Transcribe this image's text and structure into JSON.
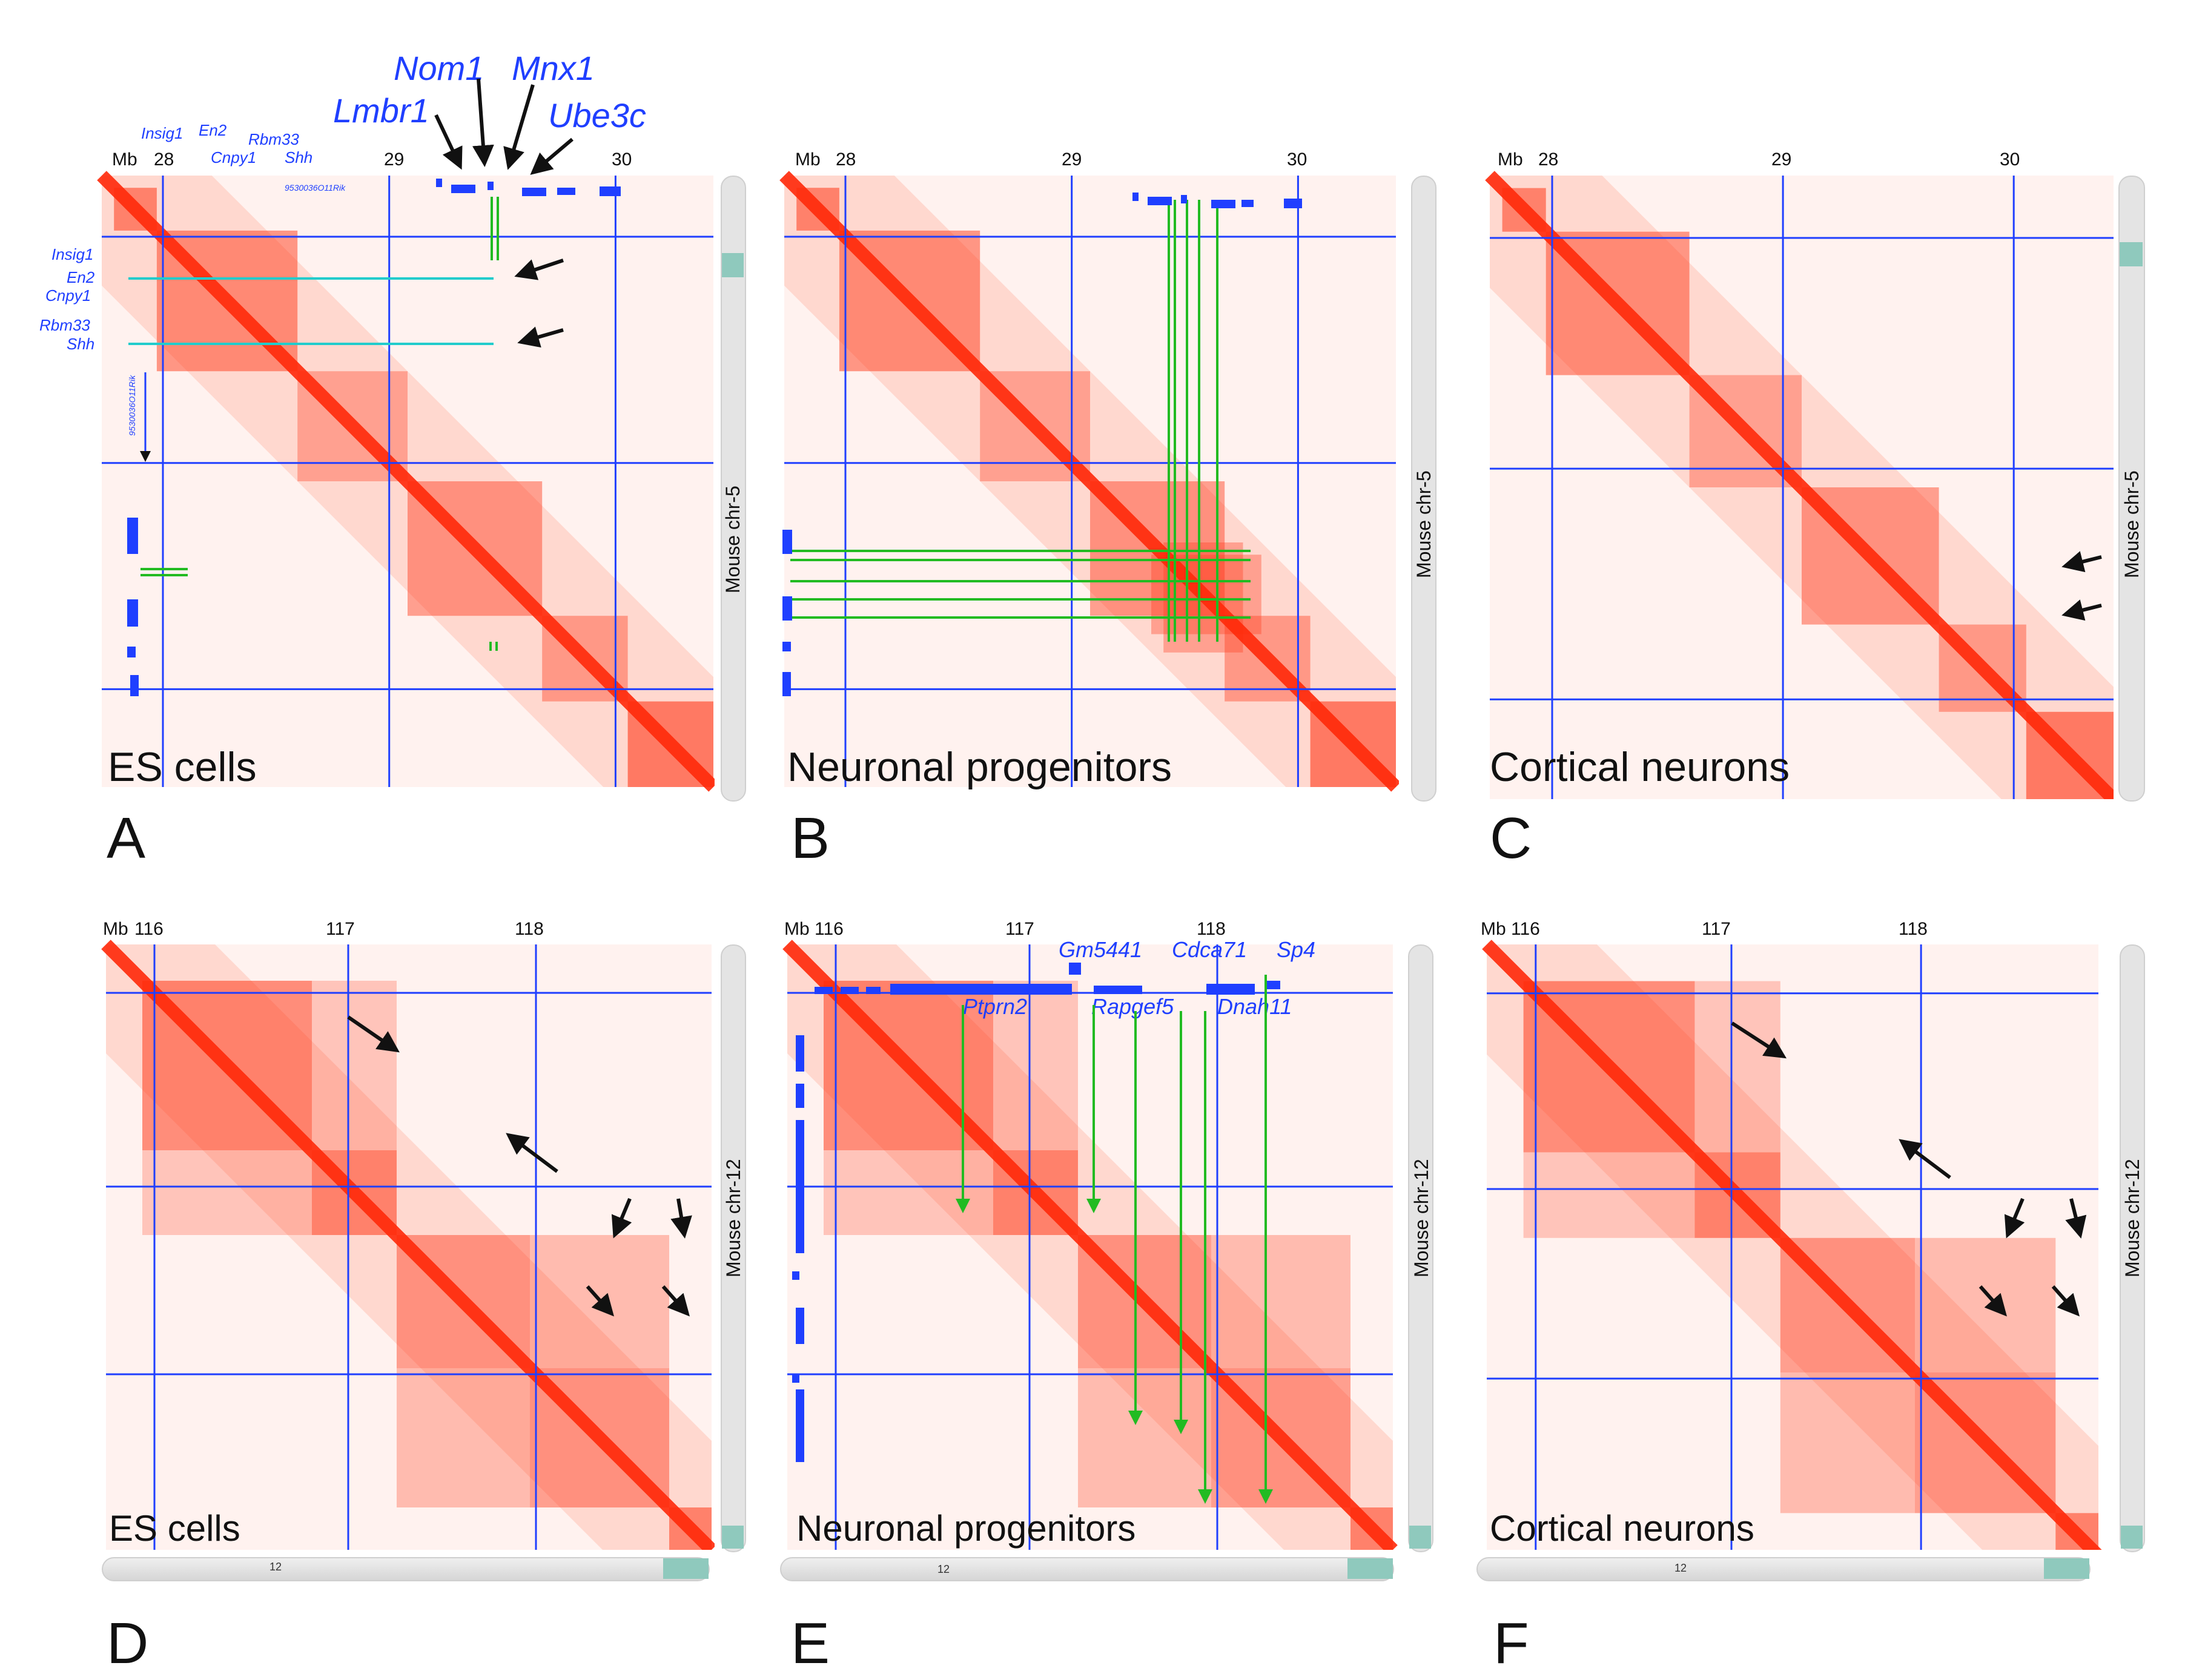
{
  "panels": [
    {
      "id": "A",
      "letter": "A",
      "cell": "ES cells",
      "chrom": "Mouse chr-5",
      "mb": "Mb",
      "ticks": [
        "28",
        "29",
        "30"
      ]
    },
    {
      "id": "B",
      "letter": "B",
      "cell": "Neuronal progenitors",
      "chrom": "Mouse chr-5",
      "mb": "Mb",
      "ticks": [
        "28",
        "29",
        "30"
      ]
    },
    {
      "id": "C",
      "letter": "C",
      "cell": "Cortical neurons",
      "chrom": "Mouse chr-5",
      "mb": "Mb",
      "ticks": [
        "28",
        "29",
        "30"
      ]
    },
    {
      "id": "D",
      "letter": "D",
      "cell": "ES cells",
      "chrom": "Mouse chr-12",
      "mb": "Mb",
      "ticks": [
        "116",
        "117",
        "118"
      ],
      "scrollbar": "12"
    },
    {
      "id": "E",
      "letter": "E",
      "cell": "Neuronal progenitors",
      "chrom": "Mouse chr-12",
      "mb": "Mb",
      "ticks": [
        "116",
        "117",
        "118"
      ],
      "scrollbar": "12"
    },
    {
      "id": "F",
      "letter": "F",
      "cell": "Cortical neurons",
      "chrom": "Mouse chr-12",
      "mb": "Mb",
      "ticks": [
        "116",
        "117",
        "118"
      ],
      "scrollbar": "12"
    }
  ],
  "genes_top": {
    "nom1": "Nom1",
    "mnx1": "Mnx1",
    "lmbr1": "Lmbr1",
    "ube3c": "Ube3c"
  },
  "genes_a": {
    "insig1": "Insig1",
    "en2": "En2",
    "cnpy1": "Cnpy1",
    "rbm33": "Rbm33",
    "shh": "Shh",
    "rik": "9530036O11Rik"
  },
  "genes_e": {
    "gm5441": "Gm5441",
    "cdca71": "Cdca71",
    "sp4": "Sp4",
    "ptprn2": "Ptprn2",
    "rapgef5": "Rapgef5",
    "dnah11": "Dnah11"
  },
  "colors": {
    "heat": "#ff3a1a",
    "grid": "#1f3fff",
    "green": "#22bb22",
    "cyan": "#22cccc"
  }
}
